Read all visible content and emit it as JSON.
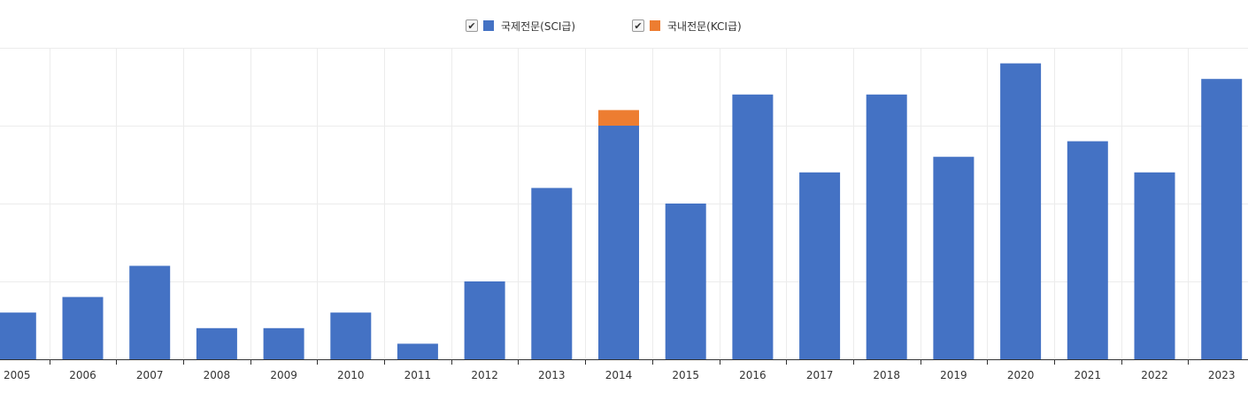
{
  "legend": [
    {
      "label": "국제전문(SCI급)",
      "color": "#4472c4",
      "checked": true,
      "check_icon": "✔"
    },
    {
      "label": "국내전문(KCI급)",
      "color": "#ed7d31",
      "checked": true,
      "check_icon": "✔"
    }
  ],
  "chart_data": {
    "type": "bar",
    "stacked": true,
    "categories": [
      "2005",
      "2006",
      "2007",
      "2008",
      "2009",
      "2010",
      "2011",
      "2012",
      "2013",
      "2014",
      "2015",
      "2016",
      "2017",
      "2018",
      "2019",
      "2020",
      "2021",
      "2022",
      "2023"
    ],
    "series": [
      {
        "name": "국제전문(SCI급)",
        "color": "#4472c4",
        "values": [
          3,
          4,
          6,
          2,
          2,
          3,
          1,
          5,
          11,
          15,
          10,
          17,
          12,
          17,
          13,
          19,
          14,
          12,
          18
        ]
      },
      {
        "name": "국내전문(KCI급)",
        "color": "#ed7d31",
        "values": [
          0,
          0,
          0,
          0,
          0,
          0,
          0,
          0,
          0,
          1,
          0,
          0,
          0,
          0,
          0,
          0,
          0,
          0,
          0
        ]
      }
    ],
    "ylim": [
      0,
      20
    ],
    "yticks": [
      0,
      5,
      10,
      15,
      20
    ],
    "ytick_labels_shown": false,
    "grid": true,
    "legend_position": "top-center",
    "title": "",
    "xlabel": "",
    "ylabel": ""
  }
}
